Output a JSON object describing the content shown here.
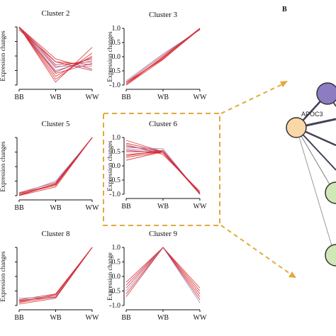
{
  "panel_b_label": "B",
  "colors": {
    "line": "#d7262c",
    "line_alt": "#8a8ad0",
    "highlight": "#e3a93a",
    "node_purple": "#8e7cc3",
    "node_orange": "#f9d7a6",
    "node_green": "#cfe8b8",
    "edge_dark": "#4a3f5c"
  },
  "network": {
    "node_label": "APOC3"
  },
  "chart_data": [
    {
      "type": "line",
      "title": "Cluster 2",
      "ylabel": "Expression changes",
      "categories": [
        "BB",
        "WB",
        "WW"
      ],
      "yticks": [
        "-1.0",
        "-0.5",
        "0.0",
        "0.5",
        "1.0"
      ],
      "show_yticks": false,
      "ylim": [
        -1.05,
        1.05
      ],
      "series": [
        {
          "values": [
            1.0,
            -0.1,
            -0.45
          ]
        },
        {
          "values": [
            1.0,
            -0.2,
            -0.3
          ]
        },
        {
          "values": [
            1.0,
            -0.3,
            -0.2
          ]
        },
        {
          "values": [
            1.0,
            -0.4,
            -0.1
          ]
        },
        {
          "values": [
            1.0,
            -0.5,
            -0.15
          ]
        },
        {
          "values": [
            1.0,
            -0.6,
            -0.25
          ]
        },
        {
          "values": [
            1.0,
            -0.7,
            0.0
          ]
        },
        {
          "values": [
            1.0,
            -0.8,
            0.1
          ]
        },
        {
          "values": [
            1.0,
            -0.9,
            0.3
          ]
        },
        {
          "values": [
            0.95,
            -0.35,
            -0.35
          ]
        },
        {
          "values": [
            0.9,
            -0.2,
            -0.5
          ]
        },
        {
          "values": [
            0.98,
            -0.55,
            -0.05
          ]
        }
      ]
    },
    {
      "type": "line",
      "title": "Cluster 3",
      "ylabel": "Expression changes",
      "categories": [
        "BB",
        "WB",
        "WW"
      ],
      "yticks": [
        "-1.0",
        "-0.5",
        "0.0",
        "0.5",
        "1.0"
      ],
      "show_yticks": true,
      "ylim": [
        -1.05,
        1.05
      ],
      "series": [
        {
          "values": [
            -1.0,
            0.0,
            1.0
          ]
        },
        {
          "values": [
            -0.95,
            -0.05,
            1.0
          ]
        },
        {
          "values": [
            -0.9,
            0.05,
            0.98
          ]
        },
        {
          "values": [
            -1.0,
            -0.1,
            1.0
          ]
        },
        {
          "values": [
            -0.85,
            0.1,
            0.95
          ]
        },
        {
          "values": [
            -0.95,
            -0.02,
            1.0
          ]
        },
        {
          "values": [
            -0.9,
            -0.08,
            0.97
          ]
        }
      ]
    },
    {
      "type": "line",
      "title": "Cluster 5",
      "ylabel": "Expression changes",
      "categories": [
        "BB",
        "WB",
        "WW"
      ],
      "yticks": [
        "-1.0",
        "-0.5",
        "0.0",
        "0.5",
        "1.0"
      ],
      "show_yticks": false,
      "ylim": [
        -1.05,
        1.05
      ],
      "series": [
        {
          "values": [
            -1.0,
            -0.6,
            1.0
          ]
        },
        {
          "values": [
            -0.95,
            -0.65,
            1.0
          ]
        },
        {
          "values": [
            -0.9,
            -0.55,
            1.0
          ]
        },
        {
          "values": [
            -1.0,
            -0.7,
            1.0
          ]
        },
        {
          "values": [
            -0.95,
            -0.5,
            0.98
          ]
        },
        {
          "values": [
            -0.92,
            -0.62,
            1.0
          ]
        },
        {
          "values": [
            -0.98,
            -0.58,
            1.0
          ]
        }
      ]
    },
    {
      "type": "line",
      "title": "Cluster 6",
      "ylabel": "Expression changes",
      "categories": [
        "BB",
        "WB",
        "WW"
      ],
      "yticks": [
        "-1.0",
        "-0.5",
        "0.0",
        "0.5",
        "1.0"
      ],
      "show_yticks": true,
      "ylim": [
        -1.05,
        1.05
      ],
      "series": [
        {
          "values": [
            0.2,
            0.5,
            -1.0
          ]
        },
        {
          "values": [
            0.3,
            0.5,
            -1.0
          ]
        },
        {
          "values": [
            0.4,
            0.5,
            -0.95
          ]
        },
        {
          "values": [
            0.5,
            0.5,
            -1.0
          ]
        },
        {
          "values": [
            0.6,
            0.5,
            -1.0
          ]
        },
        {
          "values": [
            0.7,
            0.5,
            -0.95
          ]
        },
        {
          "values": [
            0.8,
            0.5,
            -1.0
          ]
        },
        {
          "values": [
            0.9,
            0.5,
            -1.0
          ]
        },
        {
          "values": [
            0.55,
            0.45,
            -0.98
          ]
        },
        {
          "values": [
            0.65,
            0.6,
            -1.0
          ]
        },
        {
          "values": [
            0.35,
            0.55,
            -1.0
          ]
        },
        {
          "values": [
            0.75,
            0.4,
            -0.9
          ]
        }
      ]
    },
    {
      "type": "line",
      "title": "Cluster 8",
      "ylabel": "Expression changes",
      "categories": [
        "BB",
        "WB",
        "WW"
      ],
      "yticks": [
        "-1.0",
        "-0.5",
        "0.0",
        "0.5",
        "1.0"
      ],
      "show_yticks": false,
      "ylim": [
        -1.05,
        1.05
      ],
      "series": [
        {
          "values": [
            -0.8,
            -0.6,
            1.0
          ]
        },
        {
          "values": [
            -0.9,
            -0.7,
            1.0
          ]
        },
        {
          "values": [
            -0.85,
            -0.65,
            1.0
          ]
        },
        {
          "values": [
            -0.95,
            -0.75,
            1.0
          ]
        },
        {
          "values": [
            -0.75,
            -0.7,
            1.0
          ]
        },
        {
          "values": [
            -0.88,
            -0.62,
            1.0
          ]
        },
        {
          "values": [
            -0.82,
            -0.72,
            1.0
          ]
        }
      ]
    },
    {
      "type": "line",
      "title": "Cluster 9",
      "ylabel": "Expression change",
      "categories": [
        "BB",
        "WB",
        "WW"
      ],
      "yticks": [
        "-1.0",
        "-0.5",
        "0.0",
        "0.5",
        "1.0"
      ],
      "show_yticks": true,
      "ylim": [
        -1.05,
        1.05
      ],
      "series": [
        {
          "values": [
            -0.2,
            1.0,
            -0.6
          ]
        },
        {
          "values": [
            -0.4,
            1.0,
            -0.7
          ]
        },
        {
          "values": [
            -0.6,
            1.0,
            -0.8
          ]
        },
        {
          "values": [
            -0.3,
            1.0,
            -0.5
          ]
        },
        {
          "values": [
            -0.5,
            1.0,
            -0.9
          ]
        },
        {
          "values": [
            -0.7,
            1.0,
            -0.4
          ]
        }
      ]
    }
  ]
}
